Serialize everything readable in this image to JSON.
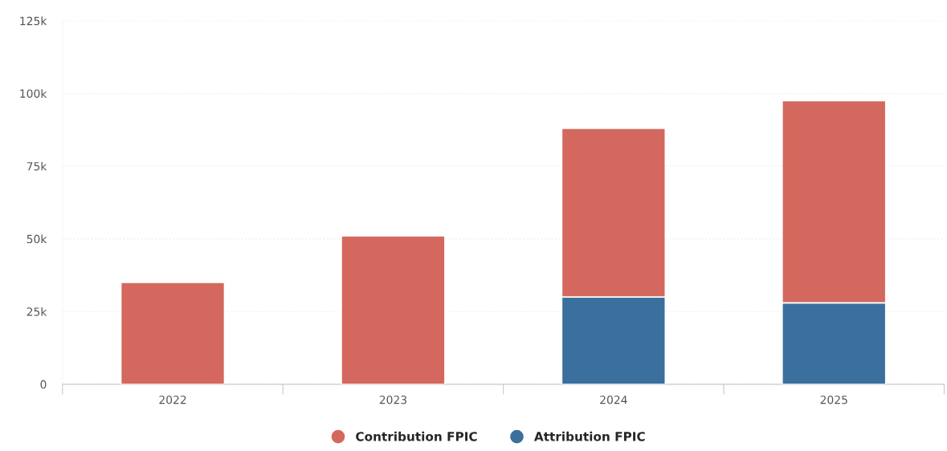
{
  "chart_data": {
    "type": "bar",
    "stacked": true,
    "categories": [
      "2022",
      "2023",
      "2024",
      "2025"
    ],
    "series": [
      {
        "name": "Attribution FPIC",
        "color": "#3a6f9e",
        "values": [
          null,
          null,
          30000,
          28000
        ]
      },
      {
        "name": "Contribution FPIC",
        "color": "#d4685e",
        "values": [
          35000,
          51000,
          58000,
          69500
        ]
      }
    ],
    "ylim": [
      0,
      125000
    ],
    "yticks": [
      0,
      {
        "value": 25000,
        "label": "25k"
      },
      {
        "value": 50000,
        "label": "50k"
      },
      {
        "value": 75000,
        "label": "75k"
      },
      {
        "value": 100000,
        "label": "100k"
      },
      {
        "value": 125000,
        "label": "125k"
      }
    ],
    "grid": "y",
    "legend": "bottom"
  }
}
